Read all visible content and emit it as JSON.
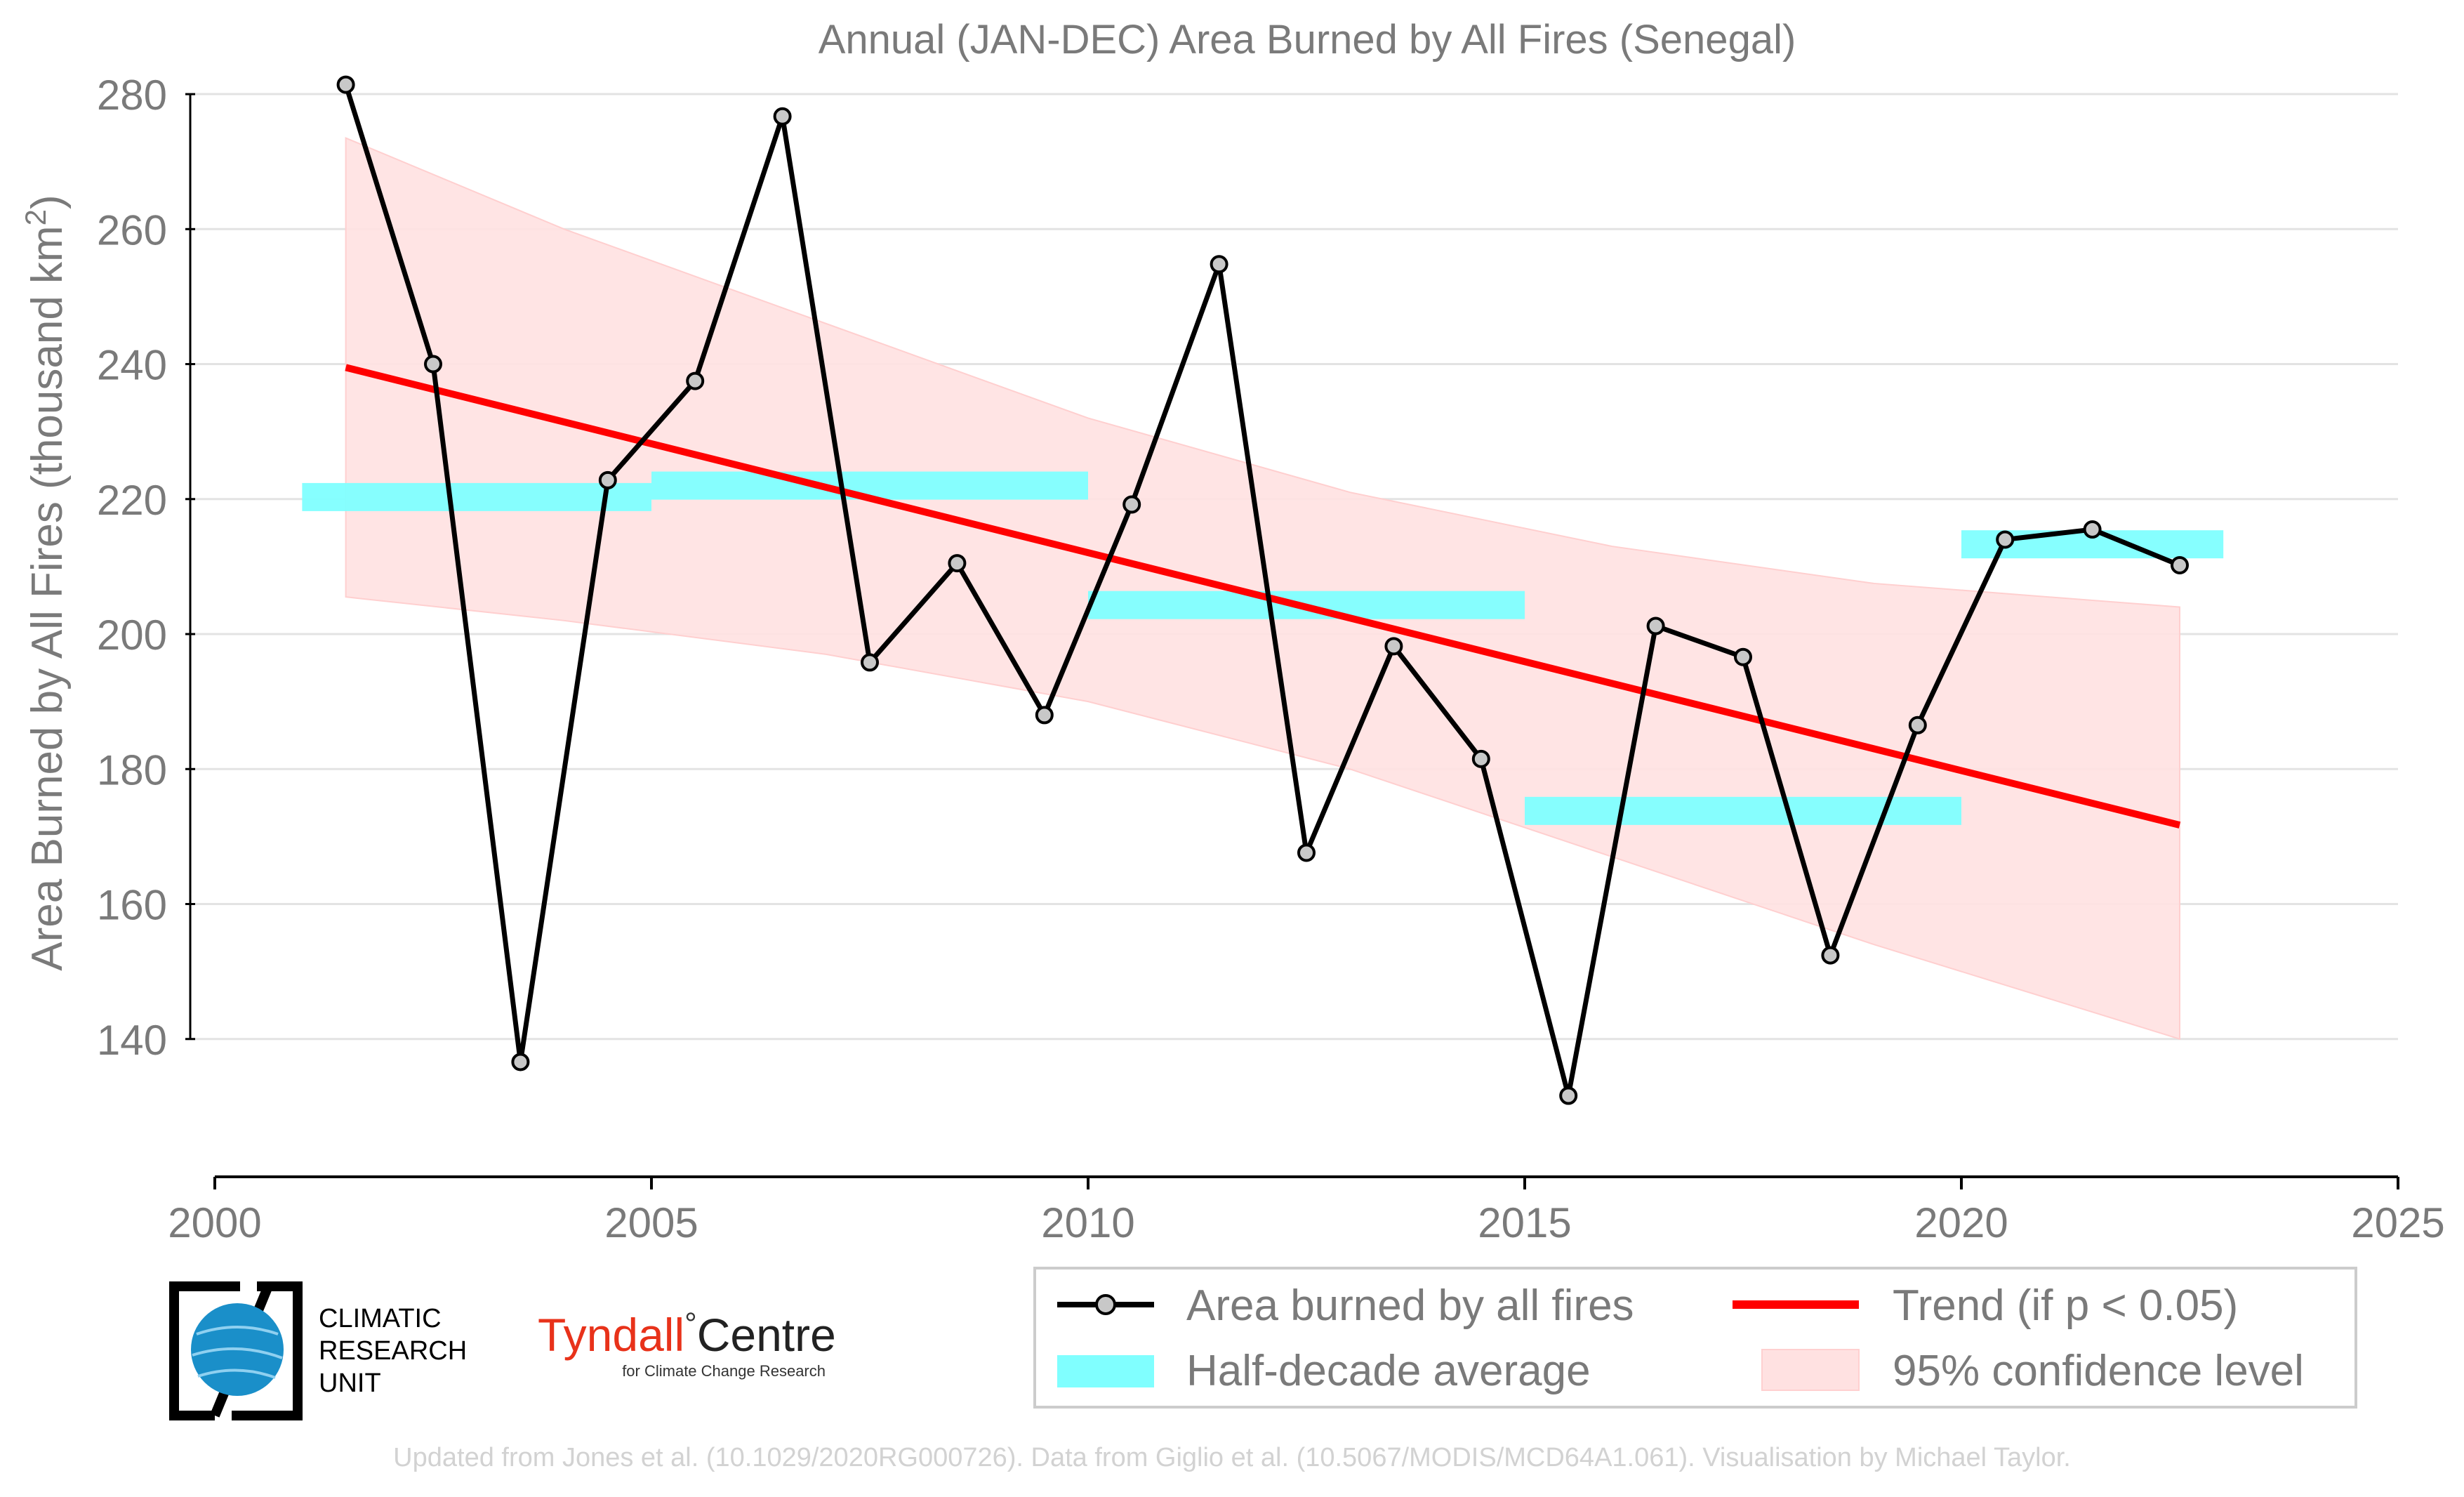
{
  "chart_data": {
    "type": "line",
    "title": "Annual (JAN-DEC) Area Burned by All Fires (Senegal)",
    "ylabel": "Area Burned by All Fires (thousand km",
    "ylabel_superscript": "2",
    "ylabel_close": ")",
    "xlabel": "",
    "xlim": [
      2000,
      2025
    ],
    "ylim": [
      120,
      285
    ],
    "x_ticks": [
      2000,
      2005,
      2010,
      2015,
      2020,
      2025
    ],
    "y_ticks": [
      140,
      160,
      180,
      200,
      220,
      240,
      260,
      280
    ],
    "grid": "horizontal",
    "legend_position": "bottom-right",
    "series": [
      {
        "name": "Area burned by all fires",
        "color": "#000000",
        "marker_fill": "#c8c8c8",
        "x": [
          2001.5,
          2002.5,
          2003.5,
          2004.5,
          2005.5,
          2006.5,
          2007.5,
          2008.5,
          2009.5,
          2010.5,
          2011.5,
          2012.5,
          2013.5,
          2014.5,
          2015.5,
          2016.5,
          2017.5,
          2018.5,
          2019.5,
          2020.5,
          2021.5,
          2022.5
        ],
        "values": [
          281.4,
          240.0,
          136.6,
          222.8,
          237.5,
          276.7,
          195.8,
          210.5,
          188.0,
          219.2,
          254.8,
          167.6,
          198.2,
          181.5,
          131.6,
          201.2,
          196.6,
          152.4,
          186.5,
          214.0,
          215.5,
          210.2
        ]
      },
      {
        "name": "Half-decade average",
        "color": "#80ffff",
        "segments": [
          {
            "x0": 2001,
            "x1": 2005,
            "value": 220.3
          },
          {
            "x0": 2005,
            "x1": 2010,
            "value": 222.0
          },
          {
            "x0": 2010,
            "x1": 2015,
            "value": 204.3
          },
          {
            "x0": 2015,
            "x1": 2020,
            "value": 173.8
          },
          {
            "x0": 2020,
            "x1": 2023,
            "value": 213.3
          }
        ]
      },
      {
        "name": "Trend (if p < 0.05)",
        "color": "#ff0000",
        "x": [
          2001.5,
          2022.5
        ],
        "values": [
          239.5,
          171.7
        ]
      },
      {
        "name": "95% confidence level",
        "color": "#ffe1e1",
        "x": [
          2001.5,
          2004,
          2007,
          2010,
          2013,
          2016,
          2019,
          2022.5
        ],
        "upper": [
          273.5,
          260.0,
          246.0,
          232.0,
          221.0,
          213.0,
          207.5,
          204.0
        ],
        "lower": [
          205.5,
          202.0,
          197.0,
          190.0,
          180.0,
          167.0,
          154.0,
          140.0
        ]
      }
    ]
  },
  "legend": {
    "line": "Area burned by all fires",
    "trend": "Trend (if p < 0.05)",
    "half": "Half-decade average",
    "conf": "95% confidence level"
  },
  "logos": {
    "cru": [
      "CLIMATIC",
      "RESEARCH",
      "UNIT"
    ],
    "tyndall_name": "Tyndall",
    "tyndall_degree": "°",
    "tyndall_centre": "Centre",
    "tyndall_sub": "for Climate Change Research"
  },
  "footer": "Updated from Jones et al. (10.1029/2020RG000726). Data from Giglio et al. (10.5067/MODIS/MCD64A1.061). Visualisation by Michael Taylor."
}
